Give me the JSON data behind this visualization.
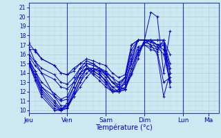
{
  "xlabel": "Température (°c)",
  "bg_color": "#cce8f0",
  "line_color": "#0000cc",
  "grid_major_color": "#aaccdd",
  "grid_minor_color": "#bbddee",
  "yticks": [
    10,
    11,
    12,
    13,
    14,
    15,
    16,
    17,
    18,
    19,
    20,
    21
  ],
  "ylim": [
    9.7,
    21.5
  ],
  "day_labels": [
    "Jeu",
    "Ven",
    "Sam",
    "Dim",
    "Lun",
    "Ma"
  ],
  "day_x": [
    0,
    72,
    144,
    216,
    288,
    336
  ],
  "xlim": [
    0,
    355
  ],
  "n_minor_x": 6,
  "lines": [
    {
      "pts": [
        [
          0,
          16.8
        ],
        [
          12,
          15.2
        ],
        [
          24,
          14.0
        ],
        [
          48,
          11.5
        ],
        [
          60,
          10.5
        ],
        [
          72,
          10.5
        ],
        [
          84,
          11.5
        ],
        [
          96,
          12.5
        ],
        [
          108,
          13.5
        ],
        [
          120,
          14.3
        ],
        [
          132,
          14.5
        ],
        [
          144,
          14.2
        ],
        [
          156,
          13.5
        ],
        [
          168,
          12.5
        ],
        [
          180,
          12.3
        ],
        [
          192,
          13.8
        ],
        [
          204,
          15.5
        ],
        [
          216,
          17.5
        ],
        [
          228,
          20.5
        ],
        [
          240,
          20.0
        ],
        [
          252,
          14.0
        ],
        [
          264,
          18.5
        ]
      ]
    },
    {
      "pts": [
        [
          0,
          15.3
        ],
        [
          12,
          14.2
        ],
        [
          24,
          12.5
        ],
        [
          48,
          11.0
        ],
        [
          60,
          10.2
        ],
        [
          72,
          10.5
        ],
        [
          84,
          11.5
        ],
        [
          96,
          13.0
        ],
        [
          108,
          14.0
        ],
        [
          120,
          14.5
        ],
        [
          132,
          14.3
        ],
        [
          144,
          13.8
        ],
        [
          156,
          13.0
        ],
        [
          168,
          12.3
        ],
        [
          180,
          12.3
        ],
        [
          192,
          14.0
        ],
        [
          204,
          16.0
        ],
        [
          216,
          17.5
        ],
        [
          228,
          17.0
        ],
        [
          240,
          16.0
        ],
        [
          252,
          11.5
        ],
        [
          264,
          14.0
        ]
      ]
    },
    {
      "pts": [
        [
          0,
          15.2
        ],
        [
          12,
          13.8
        ],
        [
          24,
          12.2
        ],
        [
          48,
          10.8
        ],
        [
          60,
          10.0
        ],
        [
          72,
          10.2
        ],
        [
          84,
          11.5
        ],
        [
          96,
          13.0
        ],
        [
          108,
          14.5
        ],
        [
          120,
          14.5
        ],
        [
          132,
          14.0
        ],
        [
          144,
          13.0
        ],
        [
          156,
          12.2
        ],
        [
          168,
          12.0
        ],
        [
          180,
          12.2
        ],
        [
          192,
          14.0
        ],
        [
          204,
          16.0
        ],
        [
          216,
          17.2
        ],
        [
          228,
          17.5
        ],
        [
          240,
          16.5
        ],
        [
          252,
          17.5
        ],
        [
          264,
          12.5
        ]
      ]
    },
    {
      "pts": [
        [
          0,
          15.1
        ],
        [
          12,
          13.5
        ],
        [
          24,
          12.0
        ],
        [
          48,
          10.5
        ],
        [
          60,
          10.0
        ],
        [
          72,
          10.3
        ],
        [
          84,
          11.8
        ],
        [
          96,
          13.5
        ],
        [
          108,
          14.5
        ],
        [
          120,
          14.5
        ],
        [
          132,
          14.2
        ],
        [
          144,
          13.5
        ],
        [
          156,
          12.5
        ],
        [
          168,
          12.0
        ],
        [
          180,
          12.2
        ],
        [
          192,
          14.5
        ],
        [
          204,
          16.2
        ],
        [
          216,
          17.3
        ],
        [
          228,
          17.0
        ],
        [
          240,
          16.8
        ],
        [
          252,
          16.0
        ],
        [
          264,
          13.0
        ]
      ]
    },
    {
      "pts": [
        [
          0,
          15.0
        ],
        [
          12,
          13.5
        ],
        [
          24,
          11.8
        ],
        [
          48,
          10.2
        ],
        [
          60,
          10.0
        ],
        [
          72,
          10.5
        ],
        [
          84,
          12.0
        ],
        [
          96,
          13.5
        ],
        [
          108,
          14.5
        ],
        [
          120,
          14.2
        ],
        [
          132,
          13.8
        ],
        [
          144,
          13.2
        ],
        [
          156,
          12.0
        ],
        [
          168,
          12.0
        ],
        [
          180,
          12.5
        ],
        [
          192,
          14.5
        ],
        [
          204,
          16.5
        ],
        [
          216,
          17.0
        ],
        [
          228,
          16.5
        ],
        [
          240,
          16.3
        ],
        [
          252,
          13.0
        ],
        [
          264,
          13.5
        ]
      ]
    },
    {
      "pts": [
        [
          0,
          15.0
        ],
        [
          12,
          13.2
        ],
        [
          24,
          11.5
        ],
        [
          48,
          10.0
        ],
        [
          60,
          10.0
        ],
        [
          72,
          10.8
        ],
        [
          84,
          12.5
        ],
        [
          96,
          14.0
        ],
        [
          108,
          14.5
        ],
        [
          120,
          14.0
        ],
        [
          132,
          13.5
        ],
        [
          144,
          12.8
        ],
        [
          156,
          12.0
        ],
        [
          168,
          12.0
        ],
        [
          180,
          13.0
        ],
        [
          192,
          15.0
        ],
        [
          204,
          16.8
        ],
        [
          216,
          17.0
        ],
        [
          228,
          16.8
        ],
        [
          240,
          16.5
        ],
        [
          252,
          17.0
        ],
        [
          264,
          14.0
        ]
      ]
    },
    {
      "pts": [
        [
          0,
          15.2
        ],
        [
          12,
          13.8
        ],
        [
          24,
          12.5
        ],
        [
          48,
          11.5
        ],
        [
          60,
          11.0
        ],
        [
          72,
          11.2
        ],
        [
          84,
          12.5
        ],
        [
          96,
          14.0
        ],
        [
          108,
          14.5
        ],
        [
          120,
          13.8
        ],
        [
          132,
          13.2
        ],
        [
          144,
          12.5
        ],
        [
          156,
          12.0
        ],
        [
          168,
          12.2
        ],
        [
          180,
          13.2
        ],
        [
          192,
          15.5
        ],
        [
          204,
          17.5
        ],
        [
          216,
          17.5
        ],
        [
          228,
          17.5
        ],
        [
          240,
          17.0
        ],
        [
          252,
          16.5
        ],
        [
          264,
          13.2
        ]
      ]
    },
    {
      "pts": [
        [
          0,
          15.5
        ],
        [
          12,
          14.2
        ],
        [
          24,
          13.0
        ],
        [
          48,
          11.8
        ],
        [
          60,
          11.2
        ],
        [
          72,
          11.5
        ],
        [
          84,
          13.0
        ],
        [
          96,
          14.5
        ],
        [
          108,
          14.8
        ],
        [
          120,
          14.2
        ],
        [
          132,
          13.8
        ],
        [
          144,
          13.2
        ],
        [
          156,
          12.5
        ],
        [
          168,
          12.5
        ],
        [
          180,
          13.5
        ],
        [
          192,
          16.0
        ],
        [
          204,
          17.5
        ],
        [
          216,
          17.5
        ],
        [
          228,
          17.5
        ],
        [
          240,
          17.0
        ],
        [
          252,
          17.0
        ],
        [
          264,
          13.0
        ]
      ]
    },
    {
      "pts": [
        [
          0,
          15.8
        ],
        [
          12,
          14.8
        ],
        [
          24,
          14.0
        ],
        [
          48,
          13.3
        ],
        [
          60,
          12.5
        ],
        [
          72,
          12.3
        ],
        [
          84,
          13.0
        ],
        [
          96,
          14.0
        ],
        [
          108,
          15.0
        ],
        [
          120,
          15.0
        ],
        [
          132,
          14.5
        ],
        [
          144,
          14.0
        ],
        [
          156,
          13.0
        ],
        [
          168,
          12.5
        ],
        [
          180,
          12.8
        ],
        [
          192,
          15.2
        ],
        [
          204,
          17.5
        ],
        [
          216,
          17.5
        ],
        [
          228,
          17.3
        ],
        [
          240,
          17.0
        ],
        [
          252,
          17.2
        ],
        [
          264,
          14.0
        ]
      ]
    },
    {
      "pts": [
        [
          0,
          16.0
        ],
        [
          12,
          15.2
        ],
        [
          24,
          14.5
        ],
        [
          48,
          13.8
        ],
        [
          60,
          13.0
        ],
        [
          72,
          12.8
        ],
        [
          84,
          13.5
        ],
        [
          96,
          14.5
        ],
        [
          108,
          15.3
        ],
        [
          120,
          15.0
        ],
        [
          132,
          14.5
        ],
        [
          144,
          13.8
        ],
        [
          156,
          13.0
        ],
        [
          168,
          12.8
        ],
        [
          180,
          13.5
        ],
        [
          192,
          16.5
        ],
        [
          204,
          17.5
        ],
        [
          216,
          17.5
        ],
        [
          228,
          17.5
        ],
        [
          240,
          17.5
        ],
        [
          252,
          17.5
        ],
        [
          264,
          14.5
        ]
      ]
    },
    {
      "pts": [
        [
          0,
          16.5
        ],
        [
          12,
          16.5
        ],
        [
          24,
          15.5
        ],
        [
          48,
          14.8
        ],
        [
          60,
          14.0
        ],
        [
          72,
          13.8
        ],
        [
          84,
          14.2
        ],
        [
          96,
          15.0
        ],
        [
          108,
          15.0
        ],
        [
          120,
          14.8
        ],
        [
          132,
          14.5
        ],
        [
          144,
          14.0
        ],
        [
          156,
          13.5
        ],
        [
          168,
          13.0
        ],
        [
          180,
          13.5
        ],
        [
          192,
          17.0
        ],
        [
          204,
          17.5
        ],
        [
          216,
          17.5
        ],
        [
          228,
          17.5
        ],
        [
          240,
          17.5
        ],
        [
          252,
          17.5
        ],
        [
          264,
          15.0
        ]
      ]
    },
    {
      "pts": [
        [
          0,
          17.2
        ],
        [
          12,
          16.3
        ],
        [
          24,
          15.5
        ],
        [
          48,
          14.8
        ],
        [
          60,
          14.0
        ],
        [
          72,
          13.8
        ],
        [
          84,
          14.5
        ],
        [
          96,
          15.0
        ],
        [
          108,
          15.5
        ],
        [
          120,
          15.3
        ],
        [
          132,
          15.0
        ],
        [
          144,
          14.8
        ],
        [
          156,
          14.0
        ],
        [
          168,
          13.5
        ],
        [
          180,
          13.8
        ],
        [
          192,
          17.0
        ],
        [
          204,
          17.5
        ],
        [
          216,
          17.5
        ],
        [
          228,
          17.5
        ],
        [
          240,
          17.5
        ],
        [
          252,
          17.5
        ],
        [
          264,
          16.0
        ]
      ]
    }
  ],
  "linewidth": 0.7,
  "markersize": 2.5,
  "marker_every": 12
}
